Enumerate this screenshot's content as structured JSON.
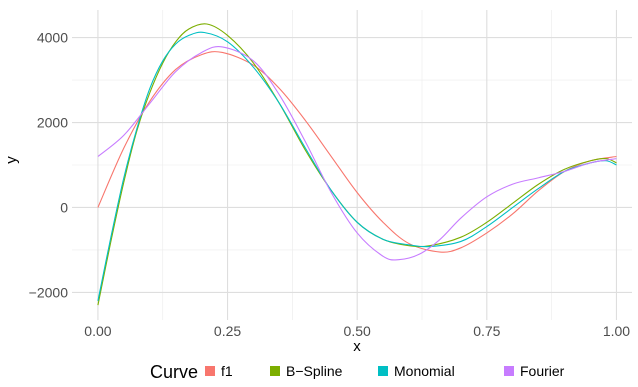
{
  "chart_data": {
    "type": "line",
    "title": "",
    "xlabel": "x",
    "ylabel": "y",
    "xlim": [
      -0.05,
      1.03
    ],
    "ylim": [
      -2650,
      4650
    ],
    "x_ticks": [
      0.0,
      0.25,
      0.5,
      0.75,
      1.0
    ],
    "x_tick_labels": [
      "0.00",
      "0.25",
      "0.50",
      "0.75",
      "1.00"
    ],
    "y_ticks": [
      -2000,
      0,
      2000,
      4000
    ],
    "y_tick_labels": [
      "−2000",
      "0",
      "2000",
      "4000"
    ],
    "grid": true,
    "legend": {
      "title": "Curve",
      "position": "bottom"
    },
    "series": [
      {
        "name": "f1",
        "color": "#F8766D",
        "x": [
          0.0,
          0.05,
          0.1,
          0.15,
          0.2,
          0.24,
          0.3,
          0.35,
          0.4,
          0.45,
          0.5,
          0.55,
          0.6,
          0.66,
          0.7,
          0.75,
          0.8,
          0.85,
          0.9,
          0.95,
          1.0
        ],
        "y": [
          0,
          1400,
          2500,
          3250,
          3600,
          3650,
          3350,
          2800,
          2050,
          1200,
          350,
          -350,
          -850,
          -1050,
          -950,
          -600,
          -150,
          400,
          850,
          1100,
          1200
        ]
      },
      {
        "name": "B−Spline",
        "color": "#7CAE00",
        "x": [
          0.0,
          0.025,
          0.05,
          0.075,
          0.1,
          0.125,
          0.15,
          0.175,
          0.21,
          0.25,
          0.3,
          0.35,
          0.4,
          0.45,
          0.5,
          0.55,
          0.6,
          0.64,
          0.7,
          0.75,
          0.8,
          0.85,
          0.9,
          0.95,
          0.98,
          1.0
        ],
        "y": [
          -2300,
          -800,
          600,
          1800,
          2700,
          3400,
          3900,
          4200,
          4320,
          4050,
          3400,
          2450,
          1350,
          400,
          -350,
          -750,
          -900,
          -900,
          -700,
          -350,
          100,
          550,
          900,
          1100,
          1150,
          1050
        ]
      },
      {
        "name": "Monomial",
        "color": "#00BFC4",
        "x": [
          0.0,
          0.025,
          0.05,
          0.075,
          0.1,
          0.125,
          0.15,
          0.175,
          0.205,
          0.25,
          0.3,
          0.35,
          0.4,
          0.45,
          0.5,
          0.55,
          0.6,
          0.64,
          0.7,
          0.75,
          0.8,
          0.85,
          0.9,
          0.95,
          0.98,
          1.0
        ],
        "y": [
          -2200,
          -700,
          700,
          1850,
          2800,
          3450,
          3850,
          4050,
          4120,
          3900,
          3300,
          2450,
          1400,
          400,
          -350,
          -750,
          -880,
          -920,
          -800,
          -450,
          0,
          450,
          850,
          1050,
          1100,
          1000
        ]
      },
      {
        "name": "Fourier",
        "color": "#C77CFF",
        "x": [
          0.0,
          0.05,
          0.1,
          0.15,
          0.2,
          0.24,
          0.3,
          0.35,
          0.4,
          0.45,
          0.5,
          0.55,
          0.58,
          0.62,
          0.66,
          0.7,
          0.75,
          0.8,
          0.85,
          0.9,
          0.95,
          1.0
        ],
        "y": [
          1200,
          1700,
          2450,
          3200,
          3650,
          3780,
          3450,
          2650,
          1550,
          350,
          -600,
          -1150,
          -1230,
          -1100,
          -750,
          -250,
          250,
          550,
          700,
          850,
          1050,
          1150
        ]
      }
    ]
  }
}
